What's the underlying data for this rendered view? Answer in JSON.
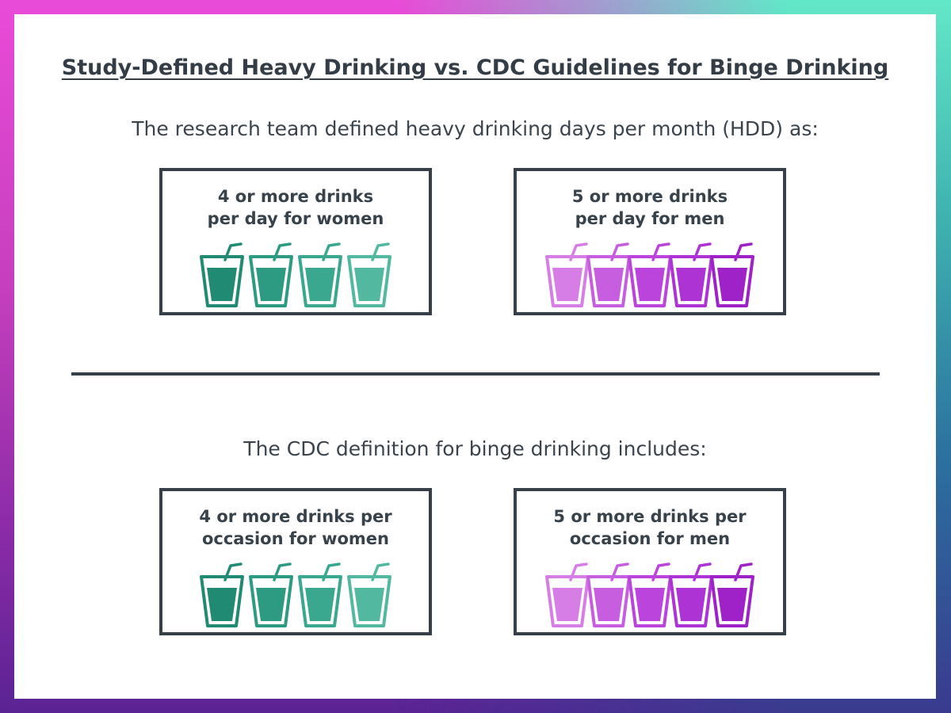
{
  "title": "Study-Defined Heavy Drinking vs. CDC Guidelines for Binge Drinking",
  "sections": [
    {
      "intro": "The research team defined heavy drinking days per month (HDD) as:",
      "boxes": [
        {
          "line1": "4 or more drinks",
          "line2": "per day for women",
          "cup_count": 4,
          "palette": "teal"
        },
        {
          "line1": "5 or more drinks",
          "line2": "per day for men",
          "cup_count": 5,
          "palette": "purple"
        }
      ]
    },
    {
      "intro": "The CDC definition for binge drinking includes:",
      "boxes": [
        {
          "line1": "4 or more drinks per",
          "line2": "occasion for women",
          "cup_count": 4,
          "palette": "teal"
        },
        {
          "line1": "5 or more drinks per",
          "line2": "occasion for men",
          "cup_count": 5,
          "palette": "purple"
        }
      ]
    }
  ],
  "icons": {
    "cup": "cup-with-straw-icon"
  },
  "colors": {
    "teal": [
      "#218a72",
      "#2d9a82",
      "#3aa88f",
      "#52b9a0"
    ],
    "purple": [
      "#d77ee6",
      "#c75ee0",
      "#bb45dc",
      "#ad33d4",
      "#9e22c7"
    ],
    "text": "#343d45",
    "border": "#374048"
  }
}
